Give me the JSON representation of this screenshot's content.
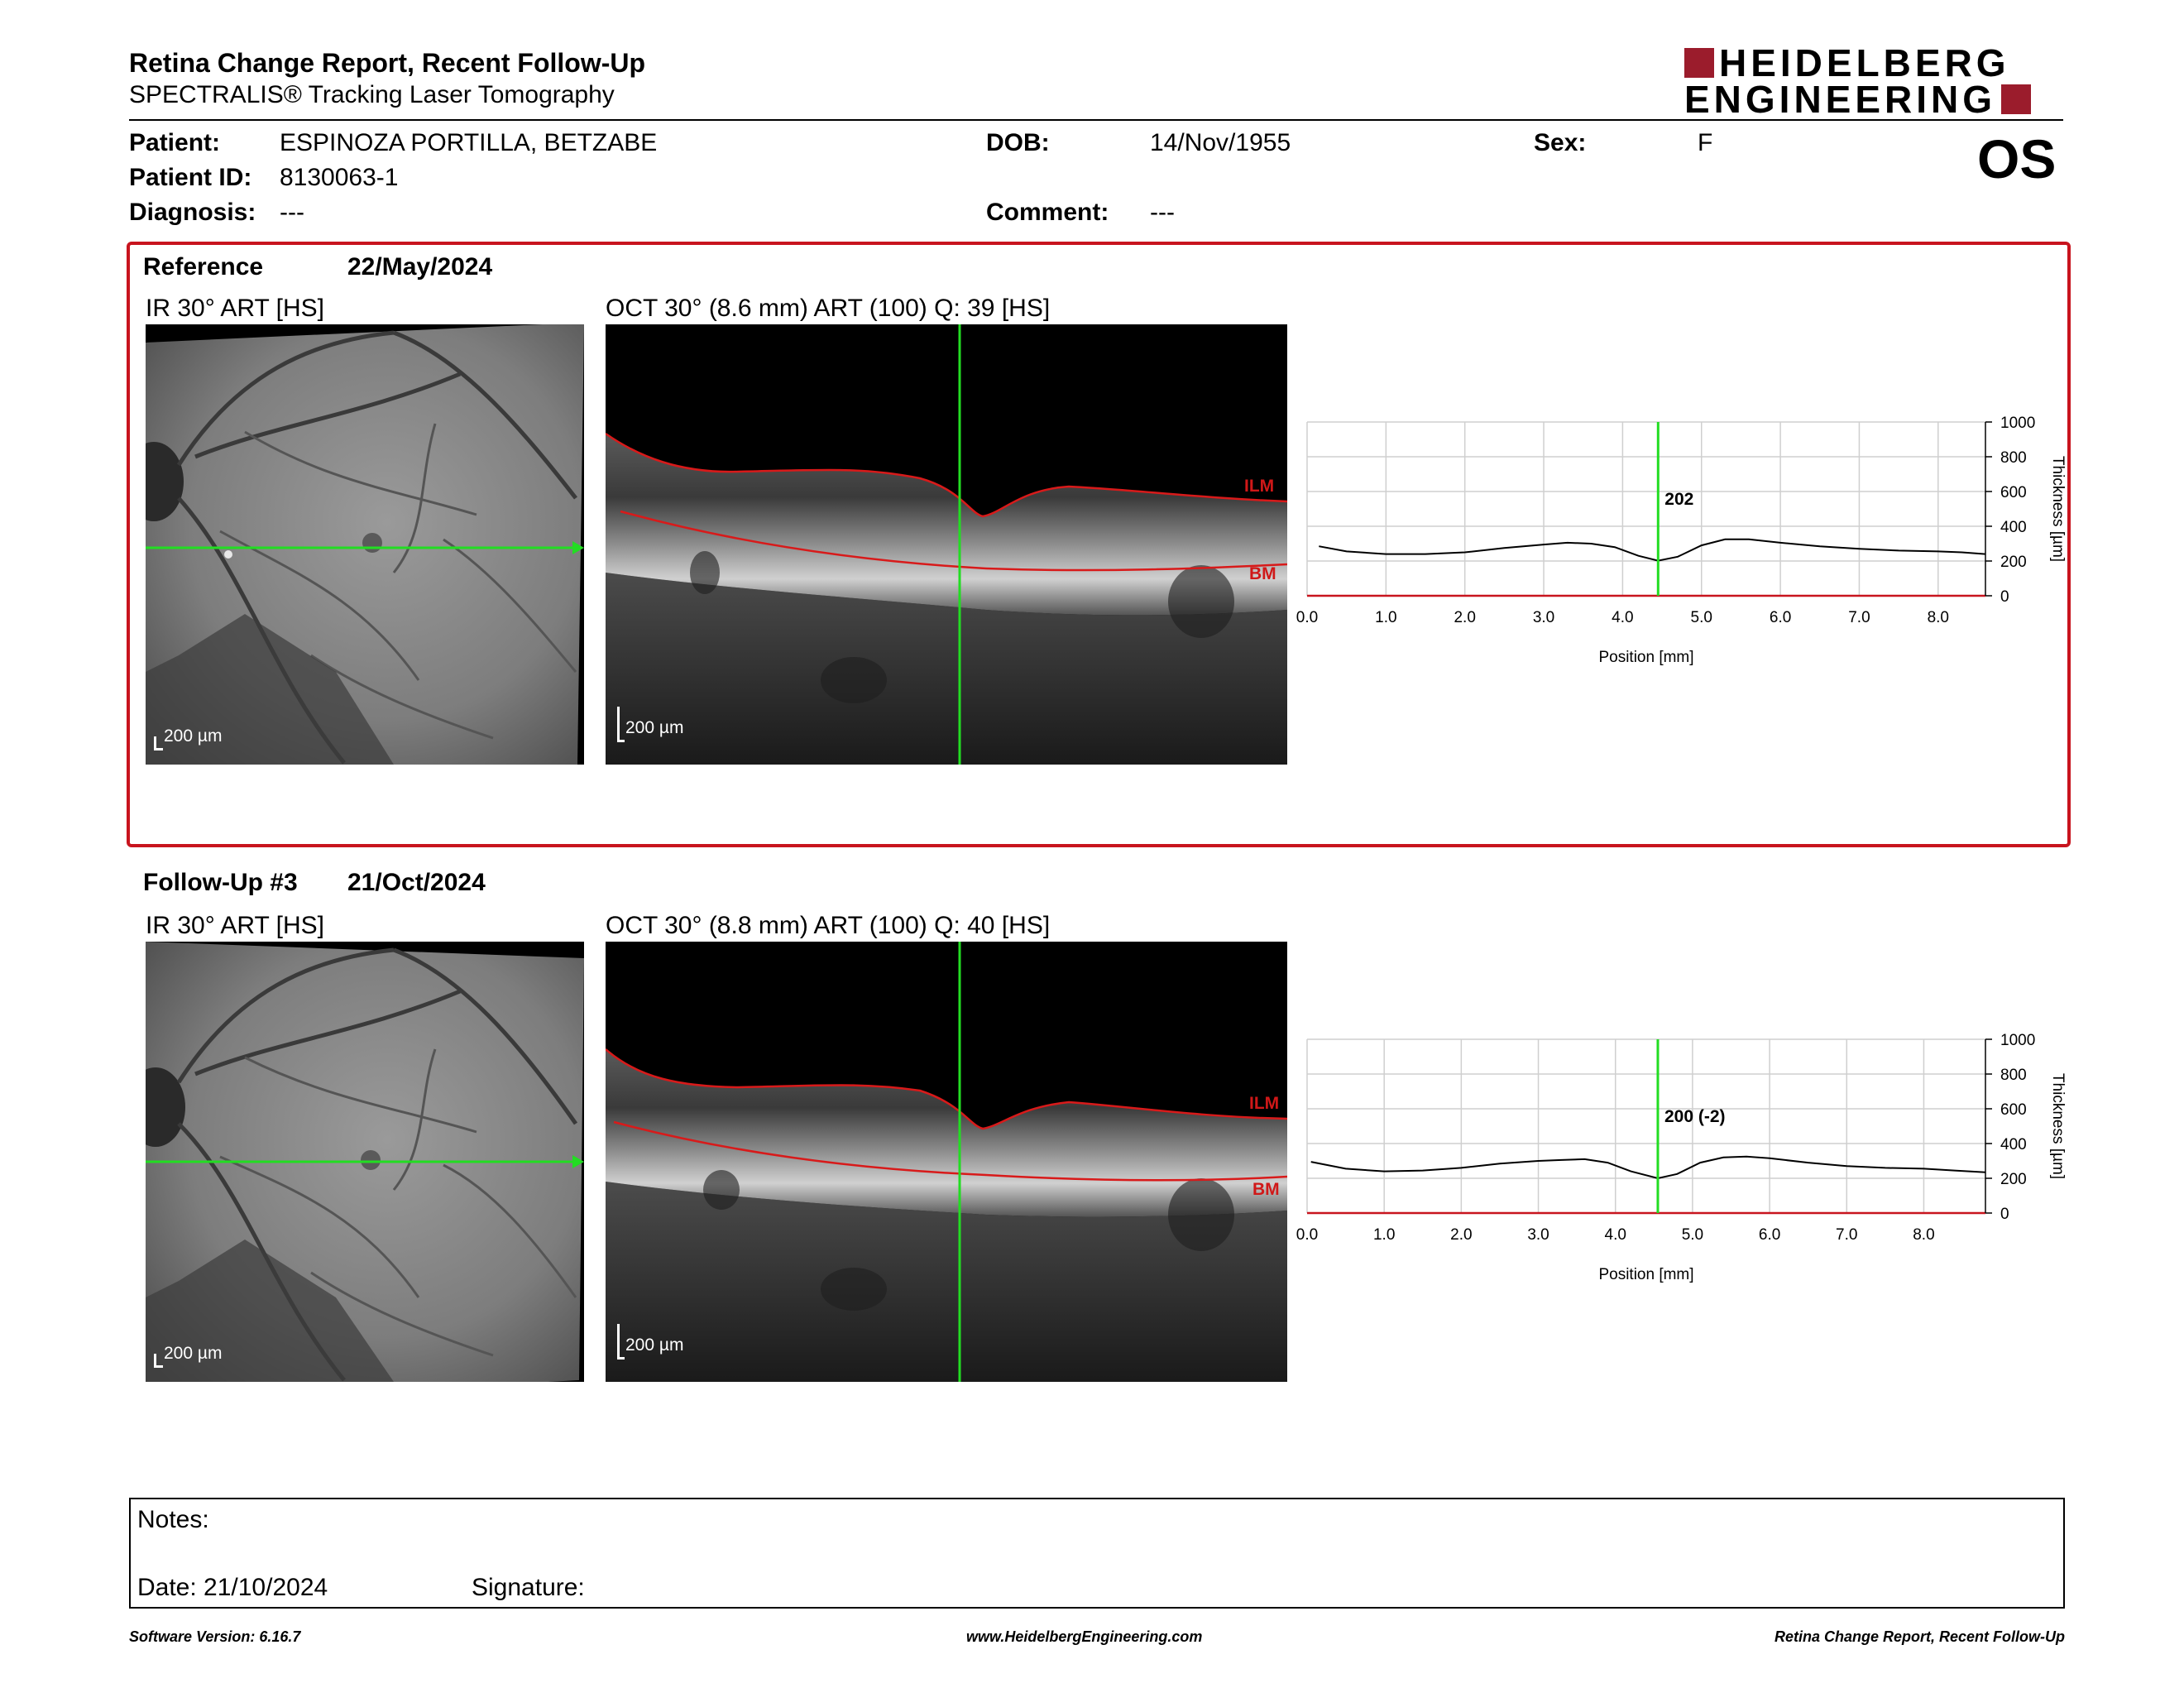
{
  "header": {
    "title": "Retina Change Report, Recent Follow-Up",
    "subtitle": "SPECTRALIS® Tracking Laser Tomography",
    "logo_line1": "HEIDELBERG",
    "logo_line2": "ENGINEERING",
    "eye": "OS"
  },
  "patient": {
    "name_label": "Patient:",
    "name": "ESPINOZA PORTILLA, BETZABE",
    "dob_label": "DOB:",
    "dob": "14/Nov/1955",
    "sex_label": "Sex:",
    "sex": "F",
    "id_label": "Patient ID:",
    "id": "8130063-1",
    "diagnosis_label": "Diagnosis:",
    "diagnosis": "---",
    "comment_label": "Comment:",
    "comment": "---"
  },
  "exams": [
    {
      "label": "Reference",
      "date": "22/May/2024",
      "ir_title": "IR 30° ART [HS]",
      "oct_title": "OCT 30° (8.6 mm) ART (100) Q: 39 [HS]",
      "scale_label": "200 µm",
      "ilm_label": "ILM",
      "bm_label": "BM",
      "cursor_value": "202",
      "cursor_position_mm": 4.45,
      "profile_x_max_mm": 8.6,
      "x_ticks": [
        "0.0",
        "1.0",
        "2.0",
        "3.0",
        "4.0",
        "5.0",
        "6.0",
        "7.0",
        "8.0"
      ],
      "y_ticks": [
        "0",
        "200",
        "400",
        "600",
        "800",
        "1000"
      ]
    },
    {
      "label": "Follow-Up #3",
      "date": "21/Oct/2024",
      "ir_title": "IR 30° ART [HS]",
      "oct_title": "OCT 30° (8.8 mm) ART (100) Q: 40 [HS]",
      "scale_label": "200 µm",
      "ilm_label": "ILM",
      "bm_label": "BM",
      "cursor_value": "200 (-2)",
      "cursor_position_mm": 4.55,
      "profile_x_max_mm": 8.8,
      "x_ticks": [
        "0.0",
        "1.0",
        "2.0",
        "3.0",
        "4.0",
        "5.0",
        "6.0",
        "7.0",
        "8.0"
      ],
      "y_ticks": [
        "0",
        "200",
        "400",
        "600",
        "800",
        "1000"
      ]
    }
  ],
  "chart_common": {
    "xlabel": "Position [mm]",
    "ylabel": "Thickness [µm]"
  },
  "notes": {
    "notes_label": "Notes:",
    "date_label": "Date: 21/10/2024",
    "signature_label": "Signature:"
  },
  "footer": {
    "software": "Software Version: 6.16.7",
    "website": "www.HeidelbergEngineering.com",
    "report_name": "Retina Change Report, Recent Follow-Up"
  },
  "chart_data": [
    {
      "type": "line",
      "title": "",
      "xlabel": "Position [mm]",
      "ylabel": "Thickness [µm]",
      "xlim": [
        0,
        8.6
      ],
      "ylim": [
        0,
        1000
      ],
      "grid": true,
      "series": [
        {
          "x": [
            0.15,
            0.5,
            1.0,
            1.5,
            2.0,
            2.5,
            3.0,
            3.3,
            3.6,
            3.9,
            4.2,
            4.45,
            4.7,
            5.0,
            5.3,
            5.6,
            6.0,
            6.5,
            7.0,
            7.5,
            8.0,
            8.3,
            8.6
          ],
          "y": [
            285,
            255,
            240,
            240,
            250,
            275,
            295,
            305,
            300,
            280,
            230,
            202,
            225,
            290,
            325,
            325,
            305,
            285,
            270,
            260,
            255,
            250,
            240
          ]
        }
      ]
    },
    {
      "type": "line",
      "title": "",
      "xlabel": "Position [mm]",
      "ylabel": "Thickness [µm]",
      "xlim": [
        0,
        8.8
      ],
      "ylim": [
        0,
        1000
      ],
      "grid": true,
      "series": [
        {
          "x": [
            0.05,
            0.5,
            1.0,
            1.5,
            2.0,
            2.5,
            3.0,
            3.3,
            3.6,
            3.9,
            4.2,
            4.55,
            4.8,
            5.1,
            5.4,
            5.7,
            6.0,
            6.5,
            7.0,
            7.5,
            8.0,
            8.4,
            8.8
          ],
          "y": [
            295,
            255,
            240,
            245,
            260,
            285,
            300,
            305,
            310,
            290,
            240,
            200,
            225,
            290,
            320,
            325,
            315,
            290,
            270,
            260,
            255,
            245,
            235
          ]
        }
      ]
    }
  ]
}
